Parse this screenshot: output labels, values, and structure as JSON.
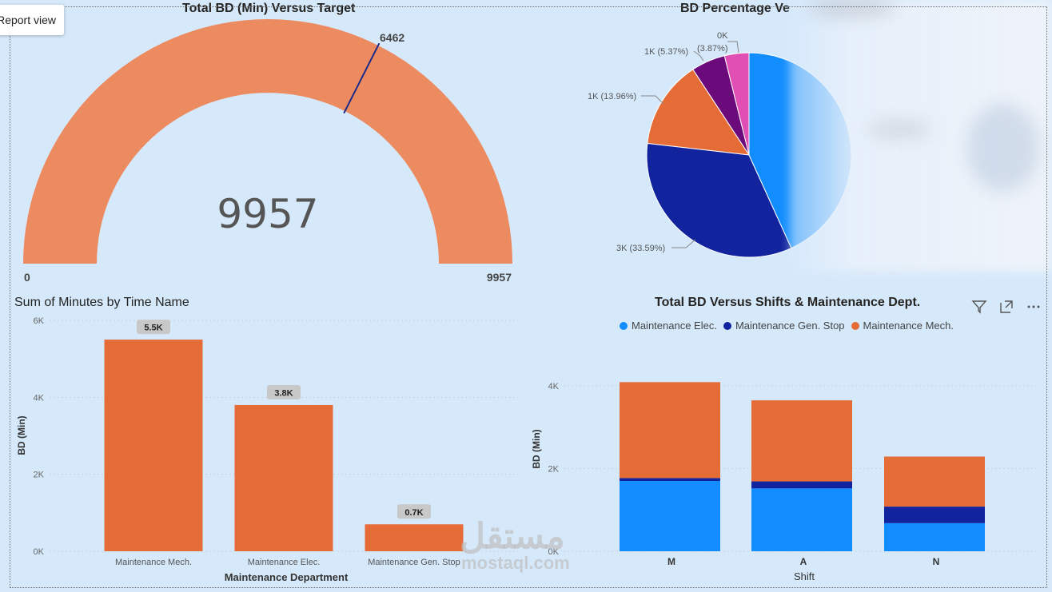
{
  "toast": {
    "label": "Report view"
  },
  "gauge": {
    "title": "Total BD (Min) Versus Target",
    "value": 9957,
    "value_label": "9957",
    "min_label": "0",
    "max_label": "9957",
    "target_label": "6462",
    "min": 0,
    "max": 9957,
    "target": 6462,
    "fill_color": "#ec8a60",
    "target_color": "#1c2a8c"
  },
  "pie": {
    "title": "BD Percentage Ve",
    "labels": {
      "blue_label": "3K (33.59%)",
      "orange_label": "1K (13.96%)",
      "purple_label": "1K (5.37%)",
      "pink_top_label": "0K",
      "pink_label": "(3.87%)"
    }
  },
  "bar_chart": {
    "title": "Sum of Minutes by Time Name",
    "ylabel": "BD (Min)",
    "xlabel": "Maintenance Department",
    "ticks": [
      "0K",
      "2K",
      "4K",
      "6K"
    ],
    "categories": [
      "Maintenance Mech.",
      "Maintenance Elec.",
      "Maintenance Gen. Stop"
    ],
    "data_labels": [
      "5.5K",
      "3.8K",
      "0.7K"
    ]
  },
  "stacked_chart": {
    "title": "Total BD Versus Shifts & Maintenance Dept.",
    "ylabel": "BD (Min)",
    "xlabel": "Shift",
    "ticks": [
      "0K",
      "2K",
      "4K"
    ],
    "categories": [
      "M",
      "A",
      "N"
    ],
    "legend": [
      "Maintenance Elec.",
      "Maintenance Gen. Stop",
      "Maintenance Mech."
    ],
    "icons": [
      "filter-icon",
      "focus-mode-icon",
      "more-options-icon"
    ]
  },
  "chart_data": [
    {
      "type": "gauge",
      "title": "Total BD (Min) Versus Target",
      "value": 9957,
      "min": 0,
      "max": 9957,
      "target": 6462
    },
    {
      "type": "pie",
      "title": "BD Percentage Ve",
      "slices": [
        {
          "value": 3.87,
          "label": "0K (3.87%)",
          "color": "#e24fb4"
        },
        {
          "value": 5.37,
          "label": "1K (5.37%)",
          "color": "#6b0a7a"
        },
        {
          "value": 13.96,
          "label": "1K (13.96%)",
          "color": "#e56c37"
        },
        {
          "value": 33.59,
          "label": "3K (33.59%)",
          "color": "#12239e"
        },
        {
          "value": 43.21,
          "label": "",
          "color": "#118dff"
        }
      ]
    },
    {
      "type": "bar",
      "title": "Sum of Minutes by Time Name",
      "categories": [
        "Maintenance Mech.",
        "Maintenance Elec.",
        "Maintenance Gen. Stop"
      ],
      "values": [
        5500,
        3800,
        700
      ],
      "xlabel": "Maintenance Department",
      "ylabel": "BD (Min)",
      "ylim": [
        0,
        6000
      ],
      "color": "#e56c37"
    },
    {
      "type": "bar",
      "stacked": true,
      "title": "Total BD Versus Shifts & Maintenance Dept.",
      "categories": [
        "M",
        "A",
        "N"
      ],
      "xlabel": "Shift",
      "ylabel": "BD (Min)",
      "ylim": [
        0,
        5000
      ],
      "legend_position": "top",
      "series": [
        {
          "name": "Maintenance Elec.",
          "values": [
            1700,
            1520,
            680
          ],
          "color": "#118dff"
        },
        {
          "name": "Maintenance Gen. Stop",
          "values": [
            70,
            170,
            400
          ],
          "color": "#12239e"
        },
        {
          "name": "Maintenance Mech.",
          "values": [
            2320,
            1960,
            1210
          ],
          "color": "#e56c37"
        }
      ]
    }
  ]
}
